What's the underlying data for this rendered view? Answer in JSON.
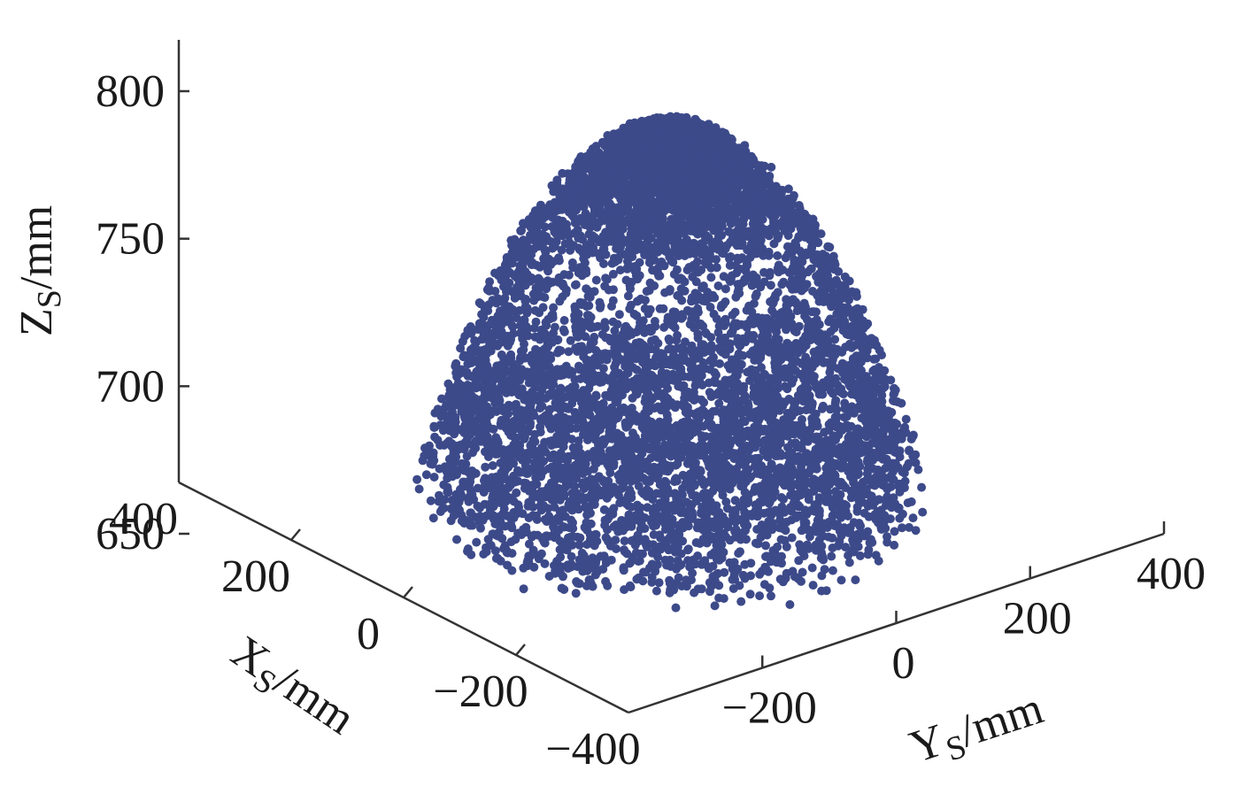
{
  "chart_data": {
    "type": "scatter",
    "projection": "3d",
    "marker_color": "#3d4a8a",
    "grid": false,
    "legend": "none",
    "axes": {
      "x": {
        "name": "X",
        "subscript": "S",
        "unit": "/mm",
        "range": [
          -400,
          400
        ],
        "ticks": [
          400,
          200,
          0,
          -200,
          -400
        ],
        "tick_labels": [
          "400",
          "200",
          "0",
          "−200",
          "−400"
        ]
      },
      "y": {
        "name": "Y",
        "subscript": "S",
        "unit": "/mm",
        "range": [
          -400,
          400
        ],
        "ticks": [
          -200,
          0,
          200,
          400
        ],
        "tick_labels": [
          "−200",
          "0",
          "200",
          "400"
        ]
      },
      "z": {
        "name": "Z",
        "subscript": "S",
        "unit": "/mm",
        "range": [
          650,
          800
        ],
        "ticks": [
          650,
          700,
          750,
          800
        ],
        "tick_labels": [
          "650",
          "700",
          "750",
          "800"
        ]
      }
    },
    "point_cloud": {
      "description_of_distribution": "dome-shaped spherical-cap workspace",
      "top_cap": {
        "center": [
          0,
          0,
          780
        ],
        "z_range": [
          745,
          782
        ],
        "max_radius": 160
      },
      "outer_shell": {
        "z_range": [
          655,
          745
        ],
        "max_radius": 350,
        "sphere_center_z": 380,
        "sphere_radius": 400
      },
      "bottom_disk": {
        "center": [
          0,
          0,
          665
        ],
        "z_range": [
          645,
          690
        ],
        "max_radius": 260
      },
      "approx_point_count": 6000
    }
  }
}
